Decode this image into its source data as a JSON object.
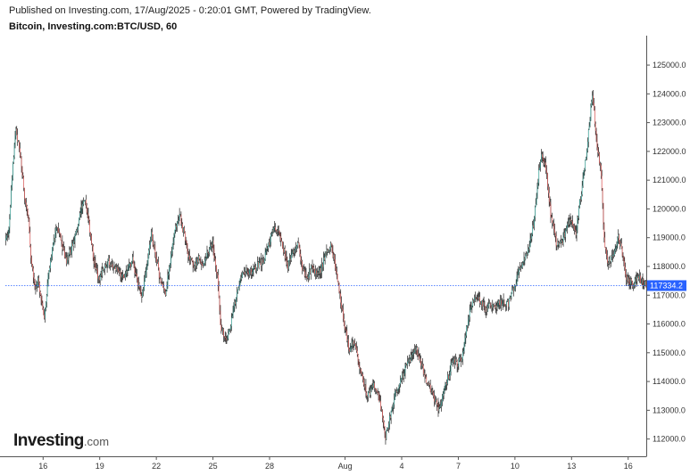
{
  "header": {
    "published": "Published on Investing.com, 17/Aug/2025 - 0:20:01 GMT, Powered by TradingView.",
    "symbol": "Bitcoin, Investing.com:BTC/USD, 60"
  },
  "logo": {
    "main": "Investing",
    "domain": ".com"
  },
  "colors": {
    "up": "#26a69a",
    "down": "#ef5350",
    "wick": "#000000",
    "price_line": "#2962ff",
    "price_tag": "#2962ff"
  },
  "chart_data": {
    "type": "candlestick",
    "interval": "60",
    "ylim": [
      111400,
      125900
    ],
    "y_ticks": [
      112000,
      113000,
      114000,
      115000,
      116000,
      117000,
      118000,
      119000,
      120000,
      121000,
      122000,
      123000,
      124000,
      125000
    ],
    "y_tick_labels": [
      "112000.0",
      "113000.0",
      "114000.0",
      "115000.0",
      "116000.0",
      "117000.0",
      "118000.0",
      "119000.0",
      "120000.0",
      "121000.0",
      "122000.0",
      "123000.0",
      "124000.0",
      "125000.0"
    ],
    "x_range": [
      "2025-07-14T00:00",
      "2025-08-16T23:00"
    ],
    "x_ticks": [
      {
        "label": "16",
        "date": "2025-07-16"
      },
      {
        "label": "19",
        "date": "2025-07-19"
      },
      {
        "label": "22",
        "date": "2025-07-22"
      },
      {
        "label": "25",
        "date": "2025-07-25"
      },
      {
        "label": "28",
        "date": "2025-07-28"
      },
      {
        "label": "Aug",
        "date": "2025-08-01"
      },
      {
        "label": "4",
        "date": "2025-08-04"
      },
      {
        "label": "7",
        "date": "2025-08-07"
      },
      {
        "label": "10",
        "date": "2025-08-10"
      },
      {
        "label": "13",
        "date": "2025-08-13"
      },
      {
        "label": "16",
        "date": "2025-08-16"
      }
    ],
    "last_price": 117334.2,
    "last_price_label": "117334.2",
    "path": [
      [
        "2025-07-14T00:00",
        118900
      ],
      [
        "2025-07-14T05:00",
        119300
      ],
      [
        "2025-07-14T10:00",
        121500
      ],
      [
        "2025-07-14T14:00",
        122800
      ],
      [
        "2025-07-14T20:00",
        121800
      ],
      [
        "2025-07-15T02:00",
        120200
      ],
      [
        "2025-07-15T06:00",
        119600
      ],
      [
        "2025-07-15T10:00",
        118000
      ],
      [
        "2025-07-15T14:00",
        117200
      ],
      [
        "2025-07-15T18:00",
        117600
      ],
      [
        "2025-07-15T22:00",
        116800
      ],
      [
        "2025-07-16T02:00",
        116200
      ],
      [
        "2025-07-16T07:00",
        117600
      ],
      [
        "2025-07-16T12:00",
        118600
      ],
      [
        "2025-07-16T18:00",
        119400
      ],
      [
        "2025-07-17T00:00",
        118800
      ],
      [
        "2025-07-17T06:00",
        118200
      ],
      [
        "2025-07-17T12:00",
        118600
      ],
      [
        "2025-07-17T18:00",
        119100
      ],
      [
        "2025-07-18T00:00",
        119900
      ],
      [
        "2025-07-18T05:00",
        120400
      ],
      [
        "2025-07-18T11:00",
        119500
      ],
      [
        "2025-07-18T17:00",
        118200
      ],
      [
        "2025-07-18T23:00",
        117600
      ],
      [
        "2025-07-19T06:00",
        117900
      ],
      [
        "2025-07-19T12:00",
        118200
      ],
      [
        "2025-07-19T18:00",
        118000
      ],
      [
        "2025-07-20T00:00",
        117800
      ],
      [
        "2025-07-20T06:00",
        117600
      ],
      [
        "2025-07-20T12:00",
        117900
      ],
      [
        "2025-07-20T18:00",
        118200
      ],
      [
        "2025-07-21T00:00",
        117500
      ],
      [
        "2025-07-21T06:00",
        117000
      ],
      [
        "2025-07-21T12:00",
        117900
      ],
      [
        "2025-07-21T18:00",
        119100
      ],
      [
        "2025-07-22T00:00",
        118400
      ],
      [
        "2025-07-22T06:00",
        117400
      ],
      [
        "2025-07-22T12:00",
        117000
      ],
      [
        "2025-07-22T18:00",
        118200
      ],
      [
        "2025-07-23T00:00",
        119200
      ],
      [
        "2025-07-23T06:00",
        119800
      ],
      [
        "2025-07-23T12:00",
        119100
      ],
      [
        "2025-07-23T18:00",
        118300
      ],
      [
        "2025-07-24T00:00",
        118000
      ],
      [
        "2025-07-24T06:00",
        118300
      ],
      [
        "2025-07-24T12:00",
        118000
      ],
      [
        "2025-07-24T18:00",
        118500
      ],
      [
        "2025-07-25T00:00",
        118800
      ],
      [
        "2025-07-25T06:00",
        117600
      ],
      [
        "2025-07-25T10:00",
        116000
      ],
      [
        "2025-07-25T16:00",
        115400
      ],
      [
        "2025-07-25T22:00",
        115800
      ],
      [
        "2025-07-26T04:00",
        116700
      ],
      [
        "2025-07-26T10:00",
        117400
      ],
      [
        "2025-07-26T16:00",
        117800
      ],
      [
        "2025-07-27T00:00",
        117800
      ],
      [
        "2025-07-27T08:00",
        118000
      ],
      [
        "2025-07-27T16:00",
        118200
      ],
      [
        "2025-07-28T00:00",
        118800
      ],
      [
        "2025-07-28T06:00",
        119400
      ],
      [
        "2025-07-28T12:00",
        119200
      ],
      [
        "2025-07-28T18:00",
        118600
      ],
      [
        "2025-07-29T00:00",
        118000
      ],
      [
        "2025-07-29T06:00",
        118500
      ],
      [
        "2025-07-29T12:00",
        118900
      ],
      [
        "2025-07-29T18:00",
        117900
      ],
      [
        "2025-07-30T00:00",
        117600
      ],
      [
        "2025-07-30T06:00",
        118000
      ],
      [
        "2025-07-30T12:00",
        117700
      ],
      [
        "2025-07-30T18:00",
        117900
      ],
      [
        "2025-07-31T00:00",
        118500
      ],
      [
        "2025-07-31T06:00",
        118700
      ],
      [
        "2025-07-31T10:00",
        118300
      ],
      [
        "2025-07-31T16:00",
        117400
      ],
      [
        "2025-07-31T22:00",
        116200
      ],
      [
        "2025-08-01T06:00",
        115100
      ],
      [
        "2025-08-01T12:00",
        115400
      ],
      [
        "2025-08-01T18:00",
        114600
      ],
      [
        "2025-08-02T00:00",
        113900
      ],
      [
        "2025-08-02T06:00",
        113500
      ],
      [
        "2025-08-02T12:00",
        113900
      ],
      [
        "2025-08-02T18:00",
        113600
      ],
      [
        "2025-08-03T00:00",
        112800
      ],
      [
        "2025-08-03T04:00",
        112100
      ],
      [
        "2025-08-03T10:00",
        112800
      ],
      [
        "2025-08-03T16:00",
        113600
      ],
      [
        "2025-08-03T22:00",
        114000
      ],
      [
        "2025-08-04T06:00",
        114500
      ],
      [
        "2025-08-04T12:00",
        114800
      ],
      [
        "2025-08-04T18:00",
        115200
      ],
      [
        "2025-08-05T00:00",
        114700
      ],
      [
        "2025-08-05T06:00",
        114200
      ],
      [
        "2025-08-05T12:00",
        113800
      ],
      [
        "2025-08-05T18:00",
        113400
      ],
      [
        "2025-08-06T00:00",
        113000
      ],
      [
        "2025-08-06T06:00",
        113600
      ],
      [
        "2025-08-06T12:00",
        114200
      ],
      [
        "2025-08-06T18:00",
        114800
      ],
      [
        "2025-08-07T00:00",
        114600
      ],
      [
        "2025-08-07T06:00",
        114900
      ],
      [
        "2025-08-07T12:00",
        116000
      ],
      [
        "2025-08-07T18:00",
        116700
      ],
      [
        "2025-08-08T00:00",
        117000
      ],
      [
        "2025-08-08T06:00",
        116700
      ],
      [
        "2025-08-08T12:00",
        116500
      ],
      [
        "2025-08-08T18:00",
        116700
      ],
      [
        "2025-08-09T00:00",
        116600
      ],
      [
        "2025-08-09T08:00",
        116800
      ],
      [
        "2025-08-09T16:00",
        116700
      ],
      [
        "2025-08-10T00:00",
        117300
      ],
      [
        "2025-08-10T08:00",
        118000
      ],
      [
        "2025-08-10T16:00",
        118400
      ],
      [
        "2025-08-11T00:00",
        119500
      ],
      [
        "2025-08-11T06:00",
        121000
      ],
      [
        "2025-08-11T10:00",
        122000
      ],
      [
        "2025-08-11T16:00",
        121400
      ],
      [
        "2025-08-11T22:00",
        119800
      ],
      [
        "2025-08-12T06:00",
        118700
      ],
      [
        "2025-08-12T12:00",
        118800
      ],
      [
        "2025-08-12T18:00",
        119300
      ],
      [
        "2025-08-13T00:00",
        119700
      ],
      [
        "2025-08-13T06:00",
        119200
      ],
      [
        "2025-08-13T12:00",
        120400
      ],
      [
        "2025-08-13T18:00",
        121600
      ],
      [
        "2025-08-14T00:00",
        123200
      ],
      [
        "2025-08-14T03:00",
        124000
      ],
      [
        "2025-08-14T08:00",
        122400
      ],
      [
        "2025-08-14T14:00",
        121200
      ],
      [
        "2025-08-14T18:00",
        119000
      ],
      [
        "2025-08-14T22:00",
        118100
      ],
      [
        "2025-08-15T06:00",
        118400
      ],
      [
        "2025-08-15T12:00",
        119000
      ],
      [
        "2025-08-15T16:00",
        118600
      ],
      [
        "2025-08-15T22:00",
        117600
      ],
      [
        "2025-08-16T06:00",
        117400
      ],
      [
        "2025-08-16T12:00",
        117600
      ],
      [
        "2025-08-16T18:00",
        117500
      ],
      [
        "2025-08-16T23:00",
        117334
      ]
    ]
  }
}
